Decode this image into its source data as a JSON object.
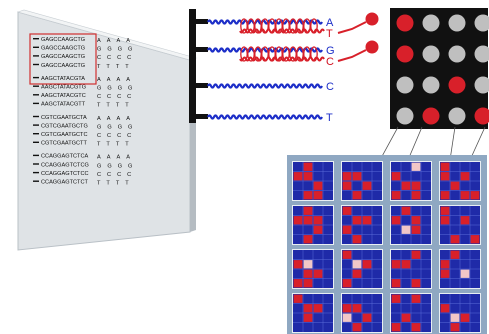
{
  "colors": {
    "probe_blue": "#1d2fc8",
    "signal_red": "#d8202a",
    "dot_grey": "#bfbfbf",
    "array_black": "#111111",
    "chip_bg": "#8fa8c2",
    "cell_blue": "#1f2aa8",
    "highlight_box": "#d03030"
  },
  "slide": {
    "groups": [
      {
        "probe": "GAGCCAAGCTG",
        "rows": [
          "GAGCCAAGCTG",
          "GAGCCAAGCTG",
          "GAGCCAAGCTG",
          "GAGCCAAGCTG"
        ],
        "fade": [
          "AAAA",
          "GGGG",
          "CCCC",
          "TTTT"
        ]
      },
      {
        "probe": "AAGCTATACGT",
        "rows": [
          "AAGCTATACGTA",
          "AAGCTATACGTG",
          "AAGCTATACGTC",
          "AAGCTATACGTT"
        ],
        "fade": [
          "AAAA",
          "GGGG",
          "CCCC",
          "TTTT"
        ]
      },
      {
        "probe": "CGTCGAATGCT",
        "rows": [
          "CGTCGAATGCTA",
          "CGTCGAATGCTG",
          "CGTCGAATGCTC",
          "CGTCGAATGCTT"
        ],
        "fade": [
          "AAAA",
          "GGGG",
          "CCCC",
          "TTTT"
        ]
      },
      {
        "probe": "CCAGGAGTCTC",
        "rows": [
          "CCAGGAGTCTCA",
          "CCAGGAGTCTCG",
          "CCAGGAGTCTCC",
          "CCAGGAGTCTCT"
        ],
        "fade": [
          "AAAA",
          "GGGG",
          "CCCC",
          "TTTT"
        ]
      }
    ]
  },
  "probes": {
    "bases": [
      "A",
      "G",
      "C",
      "T"
    ],
    "partners": [
      "T",
      "C"
    ]
  },
  "spot_grid": [
    [
      1,
      0,
      0,
      0
    ],
    [
      1,
      0,
      0,
      0
    ],
    [
      0,
      0,
      1,
      0
    ],
    [
      0,
      1,
      0,
      1
    ]
  ],
  "chip_tiles": [
    [
      [
        [
          0,
          1,
          0,
          0
        ],
        [
          1,
          1,
          0,
          0
        ],
        [
          0,
          0,
          1,
          0
        ],
        [
          0,
          1,
          1,
          0
        ]
      ],
      [
        [
          0,
          0,
          0,
          0
        ],
        [
          1,
          1,
          0,
          0
        ],
        [
          1,
          0,
          1,
          0
        ],
        [
          0,
          1,
          0,
          0
        ]
      ],
      [
        [
          0,
          0,
          2,
          0
        ],
        [
          1,
          0,
          0,
          0
        ],
        [
          0,
          1,
          1,
          0
        ],
        [
          1,
          0,
          1,
          0
        ]
      ],
      [
        [
          1,
          0,
          0,
          0
        ],
        [
          1,
          0,
          1,
          0
        ],
        [
          0,
          1,
          0,
          0
        ],
        [
          1,
          0,
          1,
          1
        ]
      ]
    ],
    [
      [
        [
          0,
          1,
          0,
          0
        ],
        [
          1,
          1,
          1,
          0
        ],
        [
          0,
          0,
          1,
          0
        ],
        [
          0,
          1,
          0,
          0
        ]
      ],
      [
        [
          1,
          0,
          0,
          0
        ],
        [
          0,
          1,
          1,
          0
        ],
        [
          1,
          0,
          0,
          0
        ],
        [
          0,
          1,
          0,
          0
        ]
      ],
      [
        [
          0,
          1,
          0,
          0
        ],
        [
          1,
          0,
          1,
          0
        ],
        [
          0,
          2,
          1,
          0
        ],
        [
          0,
          0,
          0,
          0
        ]
      ],
      [
        [
          1,
          0,
          0,
          0
        ],
        [
          1,
          0,
          1,
          0
        ],
        [
          0,
          0,
          0,
          0
        ],
        [
          0,
          1,
          0,
          1
        ]
      ]
    ],
    [
      [
        [
          0,
          0,
          0,
          0
        ],
        [
          1,
          2,
          0,
          0
        ],
        [
          0,
          1,
          1,
          0
        ],
        [
          1,
          1,
          0,
          0
        ]
      ],
      [
        [
          1,
          0,
          0,
          0
        ],
        [
          0,
          2,
          1,
          0
        ],
        [
          0,
          1,
          0,
          0
        ],
        [
          1,
          0,
          0,
          0
        ]
      ],
      [
        [
          0,
          0,
          1,
          0
        ],
        [
          1,
          1,
          0,
          0
        ],
        [
          0,
          0,
          0,
          0
        ],
        [
          1,
          0,
          1,
          0
        ]
      ],
      [
        [
          0,
          1,
          0,
          0
        ],
        [
          1,
          0,
          0,
          0
        ],
        [
          1,
          0,
          2,
          0
        ],
        [
          0,
          0,
          0,
          0
        ]
      ]
    ],
    [
      [
        [
          1,
          0,
          0,
          0
        ],
        [
          0,
          1,
          1,
          0
        ],
        [
          0,
          1,
          0,
          0
        ],
        [
          0,
          0,
          0,
          0
        ]
      ],
      [
        [
          0,
          0,
          0,
          0
        ],
        [
          1,
          1,
          0,
          0
        ],
        [
          2,
          0,
          1,
          0
        ],
        [
          0,
          1,
          0,
          0
        ]
      ],
      [
        [
          1,
          0,
          1,
          0
        ],
        [
          0,
          0,
          0,
          0
        ],
        [
          0,
          1,
          0,
          0
        ],
        [
          1,
          0,
          1,
          0
        ]
      ],
      [
        [
          0,
          0,
          0,
          0
        ],
        [
          1,
          0,
          0,
          0
        ],
        [
          0,
          2,
          1,
          0
        ],
        [
          0,
          1,
          0,
          0
        ]
      ]
    ]
  ]
}
